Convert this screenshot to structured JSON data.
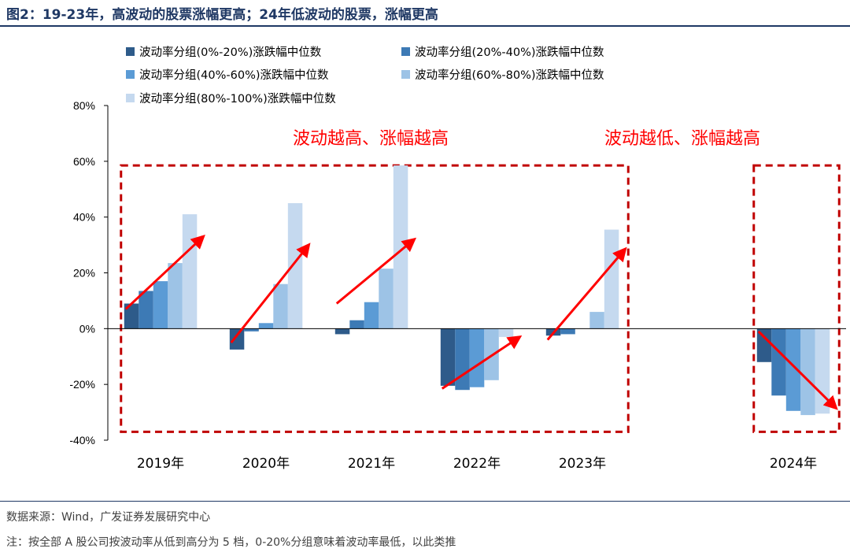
{
  "header": {
    "title": "图2：19-23年，高波动的股票涨幅更高；24年低波动的股票，涨幅更高"
  },
  "footer": {
    "source": "数据来源：Wind，广发证券发展研究中心",
    "note": "注：按全部 A 股公司按波动率从低到高分为 5 档，0-20%分组意味着波动率最低，以此类推"
  },
  "chart_data": {
    "type": "bar",
    "title": "",
    "xlabel": "",
    "ylabel": "",
    "ylim": [
      -0.4,
      0.8
    ],
    "yticks": [
      {
        "value": 0.8,
        "label": "80%"
      },
      {
        "value": 0.6,
        "label": "60%"
      },
      {
        "value": 0.4,
        "label": "40%"
      },
      {
        "value": 0.2,
        "label": "20%"
      },
      {
        "value": 0.0,
        "label": "0%"
      },
      {
        "value": -0.2,
        "label": "-20%"
      },
      {
        "value": -0.4,
        "label": "-40%"
      }
    ],
    "categories": [
      "2019年",
      "2020年",
      "2021年",
      "2022年",
      "2023年",
      "",
      "2024年"
    ],
    "legend_position": "top",
    "series": [
      {
        "name": "波动率分组(0%-20%)涨跌幅中位数",
        "color": "#2e5b8a",
        "values": [
          0.09,
          -0.075,
          -0.02,
          -0.205,
          -0.025,
          null,
          -0.12
        ]
      },
      {
        "name": "波动率分组(20%-40%)涨跌幅中位数",
        "color": "#3d7ab5",
        "values": [
          0.135,
          -0.01,
          0.03,
          -0.22,
          -0.02,
          null,
          -0.24
        ]
      },
      {
        "name": "波动率分组(40%-60%)涨跌幅中位数",
        "color": "#5b9bd5",
        "values": [
          0.17,
          0.02,
          0.095,
          -0.21,
          0.0,
          null,
          -0.295
        ]
      },
      {
        "name": "波动率分组(60%-80%)涨跌幅中位数",
        "color": "#9dc3e6",
        "values": [
          0.235,
          0.16,
          0.215,
          -0.185,
          0.06,
          null,
          -0.31
        ]
      },
      {
        "name": "波动率分组(80%-100%)涨跌幅中位数",
        "color": "#c5d9ef",
        "values": [
          0.41,
          0.45,
          0.585,
          -0.03,
          0.355,
          null,
          -0.305
        ]
      }
    ],
    "annotations": [
      {
        "text": "波动越高、涨幅越高",
        "color": "#ff0000"
      },
      {
        "text": "波动越低、涨幅越高",
        "color": "#ff0000"
      }
    ],
    "highlight_boxes": [
      {
        "from_category": 0,
        "to_category": 4,
        "y_from": 0.585,
        "y_to": -0.37,
        "color": "#c00000"
      },
      {
        "from_category": 6,
        "to_category": 6,
        "y_from": 0.585,
        "y_to": -0.37,
        "color": "#c00000"
      }
    ],
    "arrows": [
      {
        "category": 0,
        "from": 0.07,
        "to": 0.33
      },
      {
        "category": 1,
        "from": -0.05,
        "to": 0.3
      },
      {
        "category": 2,
        "from": 0.09,
        "to": 0.32
      },
      {
        "category": 3,
        "from": -0.215,
        "to": -0.03
      },
      {
        "category": 4,
        "from": -0.04,
        "to": 0.285
      },
      {
        "category": 6,
        "from": -0.01,
        "to": -0.285
      }
    ]
  }
}
